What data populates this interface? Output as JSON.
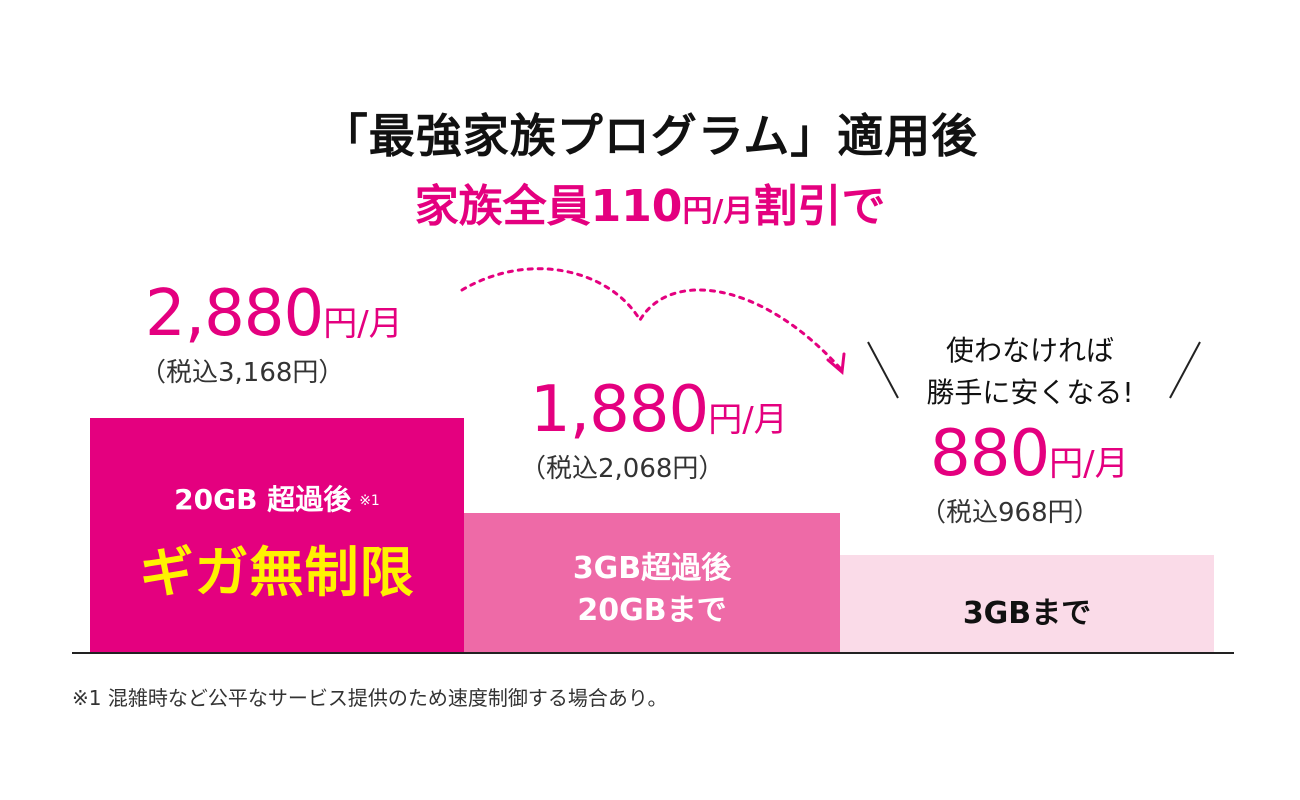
{
  "title": {
    "line1": "「最強家族プログラム」適用後",
    "line2_main": "家族全員110",
    "line2_unit": "円/月",
    "line2_tail": "割引で"
  },
  "tiers": [
    {
      "price": "2,880",
      "unit": "円/月",
      "tax": "（税込3,168円）",
      "label_sub": "20GB 超過後",
      "label_note": "※1",
      "label_main": "ギガ無制限"
    },
    {
      "price": "1,880",
      "unit": "円/月",
      "tax": "（税込2,068円）",
      "label_line1": "3GB超過後",
      "label_line2": "20GBまで"
    },
    {
      "price": "880",
      "unit": "円/月",
      "tax": "（税込968円）",
      "label": "3GBまで"
    }
  ],
  "callout": {
    "line1": "使わなければ",
    "line2": "勝手に安くなる!"
  },
  "footnote": "※1 混雑時など公平なサービス提供のため速度制御する場合あり。",
  "colors": {
    "magenta": "#e4007f",
    "mid_pink": "#ee6aa7",
    "light_pink": "#fadbe8",
    "yellow": "#fff200"
  }
}
